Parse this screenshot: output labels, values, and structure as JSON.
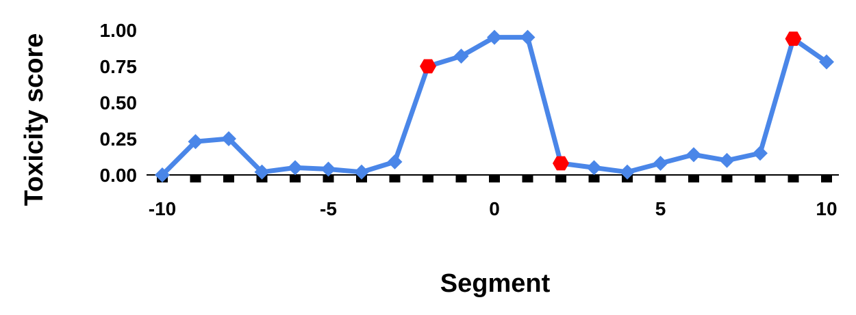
{
  "chart_data": {
    "type": "line",
    "title": "",
    "xlabel": "Segment",
    "ylabel": "Toxicity score",
    "xlim": [
      -10,
      10
    ],
    "ylim": [
      0,
      1
    ],
    "x_tick_values": [
      -10,
      -5,
      0,
      5,
      10
    ],
    "x_tick_labels": [
      "-10",
      "-5",
      "0",
      "5",
      "10"
    ],
    "y_tick_values": [
      0,
      0.25,
      0.5,
      0.75,
      1
    ],
    "y_tick_labels": [
      "0.00",
      "0.25",
      "0.50",
      "0.75",
      "1.00"
    ],
    "x": [
      -10,
      -9,
      -8,
      -7,
      -6,
      -5,
      -4,
      -3,
      -2,
      -1,
      0,
      1,
      2,
      3,
      4,
      5,
      6,
      7,
      8,
      9,
      10
    ],
    "series": [
      {
        "values": [
          0.0,
          0.23,
          0.25,
          0.02,
          0.05,
          0.04,
          0.02,
          0.09,
          0.75,
          0.82,
          0.95,
          0.95,
          0.08,
          0.05,
          0.02,
          0.08,
          0.14,
          0.1,
          0.15,
          0.94,
          0.78
        ],
        "color": "#4a86e8",
        "marker": "diamond"
      }
    ],
    "highlighted_points": {
      "x": [
        -2,
        2,
        9
      ],
      "marker": "hexagon",
      "color": "#ff0000"
    },
    "baseline_markers": {
      "x": [
        -10,
        -9,
        -8,
        -7,
        -6,
        -5,
        -4,
        -3,
        -2,
        -1,
        0,
        1,
        2,
        3,
        4,
        5,
        6,
        7,
        8,
        9,
        10
      ],
      "marker": "square",
      "color": "#000000"
    },
    "grid": false,
    "legend": "none"
  }
}
